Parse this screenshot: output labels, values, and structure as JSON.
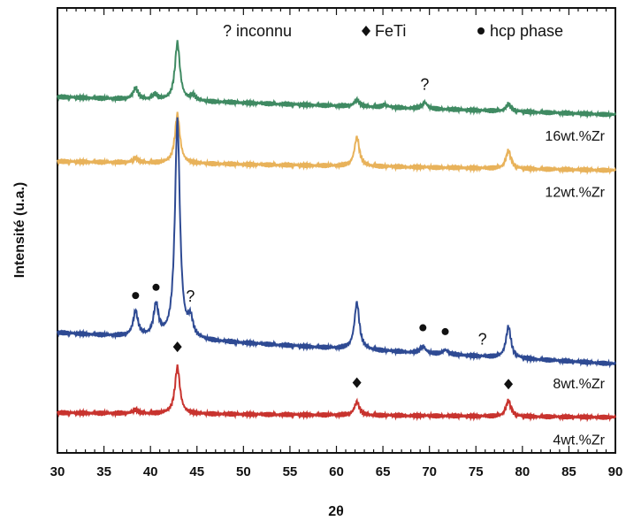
{
  "chart_data": {
    "type": "line",
    "xlabel": "2θ",
    "ylabel": "Intensité (u.a.)",
    "xlim": [
      30,
      90
    ],
    "xticks": [
      30,
      35,
      40,
      45,
      50,
      55,
      60,
      65,
      70,
      75,
      80,
      85,
      90
    ],
    "legend": [
      {
        "symbol": "question",
        "glyph": "?",
        "label": "inconnu"
      },
      {
        "symbol": "diamond",
        "glyph": "",
        "label": "FeTi"
      },
      {
        "symbol": "dot",
        "glyph": "",
        "label": "hcp phase"
      }
    ],
    "legend_position": "top",
    "series": [
      {
        "name": "16wt.%Zr",
        "color": "#3f8a62",
        "baseline": 0.8,
        "slope": -0.04,
        "peaks": [
          [
            38.4,
            0.025
          ],
          [
            40.5,
            0.012
          ],
          [
            42.9,
            0.13
          ],
          [
            44.6,
            0.012
          ],
          [
            62.2,
            0.015
          ],
          [
            65.2,
            0.006
          ],
          [
            69.5,
            0.014
          ],
          [
            78.5,
            0.016
          ]
        ]
      },
      {
        "name": "12wt.%Zr",
        "color": "#e8b25a",
        "baseline": 0.655,
        "slope": -0.02,
        "peaks": [
          [
            38.4,
            0.01
          ],
          [
            42.9,
            0.11
          ],
          [
            62.2,
            0.065
          ],
          [
            78.5,
            0.04
          ]
        ]
      },
      {
        "name": "8wt.%Zr",
        "color": "#2e4a93",
        "baseline": 0.27,
        "slope": -0.07,
        "peaks": [
          [
            38.4,
            0.055
          ],
          [
            40.6,
            0.07
          ],
          [
            42.9,
            0.49
          ],
          [
            44.3,
            0.04
          ],
          [
            62.2,
            0.105
          ],
          [
            69.3,
            0.015
          ],
          [
            71.7,
            0.01
          ],
          [
            78.5,
            0.07
          ]
        ]
      },
      {
        "name": "4wt.%Zr",
        "color": "#c8332e",
        "baseline": 0.09,
        "slope": -0.01,
        "peaks": [
          [
            38.4,
            0.008
          ],
          [
            42.9,
            0.105
          ],
          [
            62.2,
            0.03
          ],
          [
            78.5,
            0.035
          ]
        ]
      }
    ],
    "annotations": [
      {
        "series": "16wt.%Zr",
        "x": 69.5,
        "symbol": "question",
        "glyph": "?"
      },
      {
        "series": "8wt.%Zr",
        "x": 38.4,
        "symbol": "dot",
        "glyph": ""
      },
      {
        "series": "8wt.%Zr",
        "x": 40.6,
        "symbol": "dot",
        "glyph": ""
      },
      {
        "series": "8wt.%Zr",
        "x": 44.3,
        "symbol": "question",
        "glyph": "?"
      },
      {
        "series": "8wt.%Zr",
        "x": 69.3,
        "symbol": "dot",
        "glyph": ""
      },
      {
        "series": "8wt.%Zr",
        "x": 71.7,
        "symbol": "dot",
        "glyph": ""
      },
      {
        "series": "8wt.%Zr",
        "x": 75.7,
        "symbol": "question",
        "glyph": "?"
      },
      {
        "series": "4wt.%Zr",
        "x": 42.9,
        "symbol": "diamond",
        "glyph": ""
      },
      {
        "series": "4wt.%Zr",
        "x": 62.2,
        "symbol": "diamond",
        "glyph": ""
      },
      {
        "series": "4wt.%Zr",
        "x": 78.5,
        "symbol": "diamond",
        "glyph": ""
      }
    ]
  }
}
